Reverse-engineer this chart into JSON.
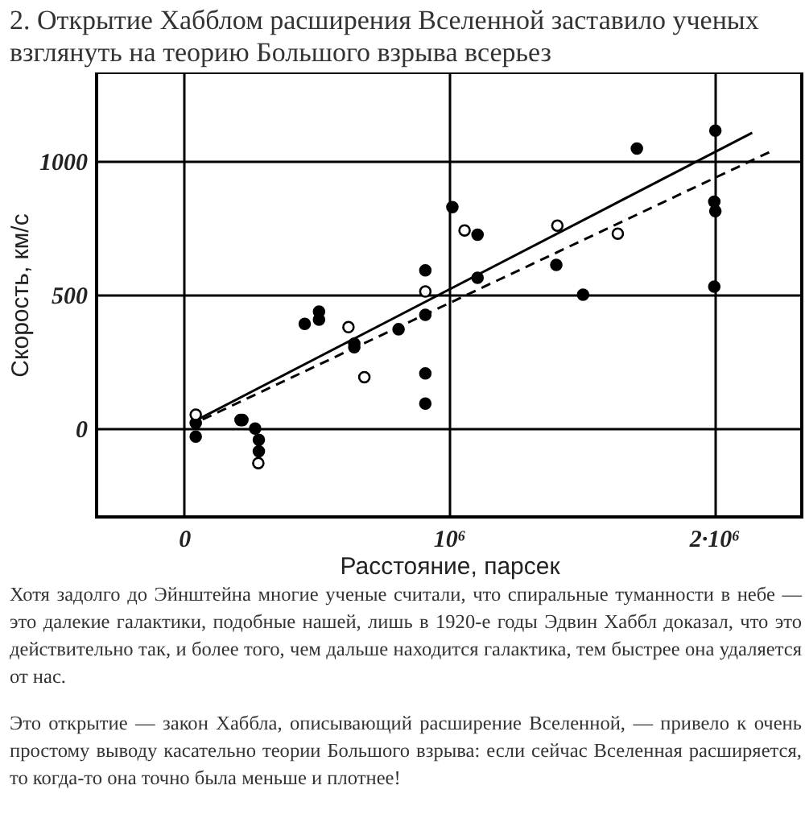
{
  "chart_data": {
    "type": "scatter",
    "title": "2. Открытие Хабблом расширения Вселенной заставило ученых взглянуть на теорию Большого взрыва всерьез",
    "xlabel": "Расстояние, парсек",
    "ylabel": "Скорость, км/с",
    "xlim": [
      -330000,
      2330000
    ],
    "ylim": [
      -330,
      1330
    ],
    "xticks": [
      0,
      {
        "value": 1000000,
        "label": "10⁶"
      },
      {
        "value": 2000000,
        "label": "2·10⁶"
      }
    ],
    "yticks": [
      0,
      500,
      1000
    ],
    "grid": true,
    "series": [
      {
        "marker": "circle",
        "color": "#000000",
        "x": [
          44000,
          44000,
          213000,
          220000,
          268000,
          282000,
          282000,
          455000,
          509000,
          509000,
          642000,
          642000,
          809000,
          910000,
          910000,
          910000,
          910000,
          1012000,
          1107000,
          1107000,
          1404000,
          1505000,
          1708000,
          2004000,
          2000000,
          2004000,
          2000000
        ],
        "values": [
          20,
          -30,
          32,
          32,
          0,
          -42,
          -85,
          391,
          437,
          407,
          317,
          304,
          371,
          591,
          425,
          206,
          93,
          827,
          724,
          563,
          611,
          500,
          1046,
          1113,
          847,
          812,
          530
        ]
      },
      {
        "marker": "circle",
        "color": "#ffffff",
        "x": [
          44000,
          280000,
          620000,
          680000,
          910000,
          1058000,
          1408000,
          1636000
        ],
        "values": [
          52,
          -129,
          379,
          192,
          512,
          740,
          758,
          728
        ]
      },
      {
        "type": "line",
        "color": "#000000",
        "line_style": "solid",
        "x": [
          60000,
          2143000
        ],
        "values": [
          38,
          1105
        ]
      },
      {
        "type": "line",
        "color": "#000000",
        "line_style": "dashed",
        "x": [
          70000,
          2207000
        ],
        "values": [
          34,
          1032
        ]
      }
    ],
    "annotations": [
      "Хотя задолго до Эйнштейна многие ученые считали, что спиральные туманности в небе — это далекие галактики, подобные нашей, лишь в 1920-е годы Эдвин Хаббл доказал, что это действительно так, и более того, чем дальше находится галактика, тем быстрее она удаляется от нас.",
      "Это открытие — закон Хаббла, описывающий расширение Вселенной, — привело к очень простому выводу касательно теории Большого взрыва: если сейчас Вселенная расширяется, то когда-то она точно была меньше и плотнее!"
    ]
  }
}
